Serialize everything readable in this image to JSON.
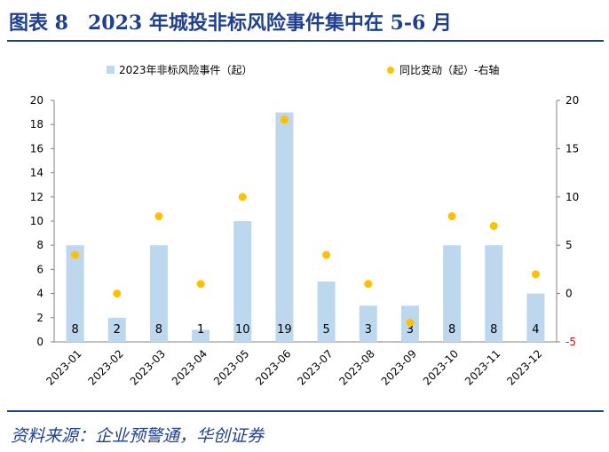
{
  "figure": {
    "title": "图表 8　2023 年城投非标风险事件集中在 5-6 月",
    "source": "资料来源：企业预警通，华创证券",
    "accent_color": "#1f3f8f"
  },
  "chart_data": {
    "type": "bar",
    "categories": [
      "2023-01",
      "2023-02",
      "2023-03",
      "2023-04",
      "2023-05",
      "2023-06",
      "2023-07",
      "2023-08",
      "2023-09",
      "2023-10",
      "2023-11",
      "2023-12"
    ],
    "series": [
      {
        "name": "2023年非标风险事件（起）",
        "type": "bar",
        "axis": "left",
        "color": "#bdd7ee",
        "values": [
          8,
          2,
          8,
          1,
          10,
          19,
          5,
          3,
          3,
          8,
          8,
          4
        ]
      },
      {
        "name": "同比变动（起）-右轴",
        "type": "scatter",
        "axis": "right",
        "color": "#ffc000",
        "values": [
          4,
          0,
          8,
          1,
          10,
          18,
          4,
          1,
          -3,
          8,
          7,
          2
        ]
      }
    ],
    "left_axis": {
      "ylim": [
        0,
        20
      ],
      "ticks": [
        0,
        2,
        4,
        6,
        8,
        10,
        12,
        14,
        16,
        18,
        20
      ]
    },
    "right_axis": {
      "ylim": [
        -5,
        20
      ],
      "ticks": [
        -5,
        0,
        5,
        10,
        15,
        20
      ],
      "negative_tick_color": "#ff0000"
    },
    "legend_position": "top",
    "grid": false
  }
}
